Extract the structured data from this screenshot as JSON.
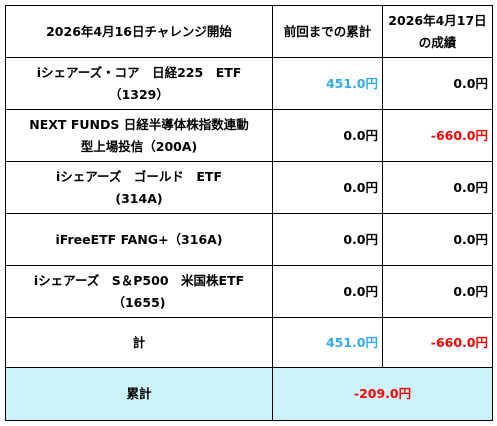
{
  "header": {
    "title": "2026年4月16日チャレンジ開始",
    "prev_total": "前回までの累計",
    "result_line1": "2026年4月17日",
    "result_line2": "の成績"
  },
  "rows": [
    {
      "name1": "iシェアーズ・コア　日経225　ETF",
      "name2": "（1329）",
      "prev": "451.0円",
      "result": "0.0円"
    },
    {
      "name1": "NEXT FUNDS 日経半導体株指数連動",
      "name2": "型上場投信（200A)",
      "prev": "0.0円",
      "result": "-660.0円"
    },
    {
      "name1": "iシェアーズ　ゴールド　ETF",
      "name2": "(314A)",
      "prev": "0.0円",
      "result": "0.0円"
    },
    {
      "name1": "iFreeETF FANG+（316A)",
      "name2": "",
      "prev": "0.0円",
      "result": "0.0円"
    },
    {
      "name1": "iシェアーズ　S＆P500　米国株ETF",
      "name2": "（1655)",
      "prev": "0.0円",
      "result": "0.0円"
    }
  ],
  "total": {
    "label": "計",
    "prev": "451.0円",
    "result": "-660.0円"
  },
  "cumulative": {
    "label": "累計",
    "value": "-209.0円"
  },
  "colors": {
    "positive": "#33aaf0",
    "negative": "#ff0000",
    "summary_bg": "#ccf2fa"
  }
}
